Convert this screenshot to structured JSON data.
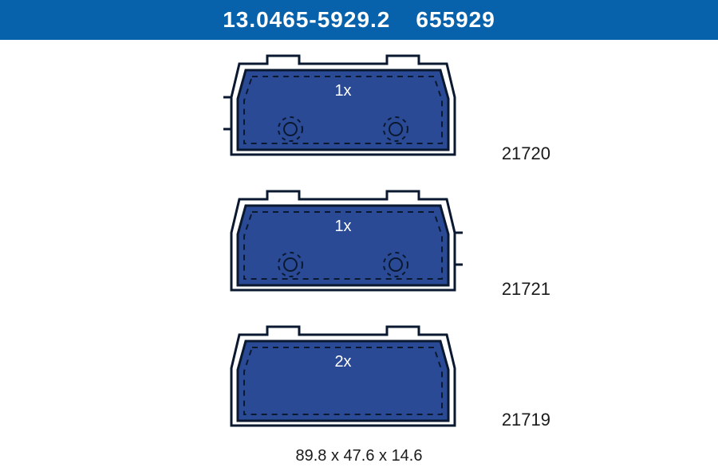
{
  "header": {
    "primary": "13.0465-5929.2",
    "secondary": "655929",
    "bg_color": "#0861ab",
    "text_color": "#ffffff"
  },
  "pads": [
    {
      "count_label": "1x",
      "part_number": "21720",
      "variant": "left-sensor"
    },
    {
      "count_label": "1x",
      "part_number": "21721",
      "variant": "right-sensor"
    },
    {
      "count_label": "2x",
      "part_number": "21719",
      "variant": "plain"
    }
  ],
  "dimensions_label": "89.8 x 47.6 x 14.6",
  "colors": {
    "pad_fill": "#2a4a96",
    "pad_stroke": "#0a1830",
    "backing_stroke": "#0a1830",
    "text_color": "#0a1830",
    "label_color": "#1a1a1a"
  },
  "layout": {
    "pad_width": 300,
    "pad_height": 148,
    "row_tops": [
      12,
      182,
      352
    ],
    "label_offsets": [
      118,
      118,
      112
    ]
  }
}
